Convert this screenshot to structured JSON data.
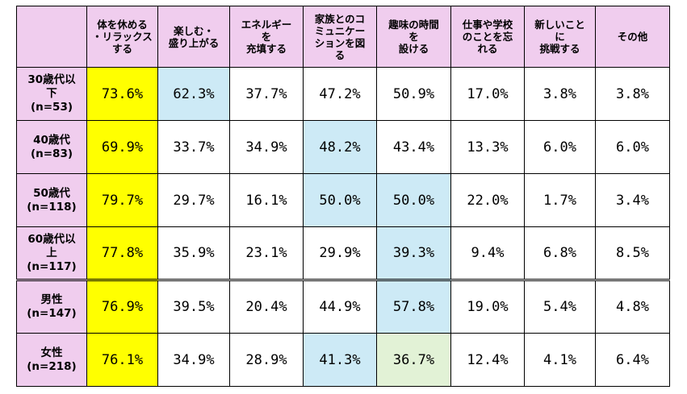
{
  "columns": [
    {
      "label": "体を休める\n・リラックス\nする"
    },
    {
      "label": "楽しむ・\n盛り上がる"
    },
    {
      "label": "エネルギー\nを\n充填する"
    },
    {
      "label": "家族とのコ\nミュニケー\nションを図\nる"
    },
    {
      "label": "趣味の時間\nを\n設ける"
    },
    {
      "label": "仕事や学校\nのことを忘\nれる"
    },
    {
      "label": "新しいこと\nに\n挑戦する"
    },
    {
      "label": "その他"
    }
  ],
  "rows": [
    {
      "label": "30歳代以\n下\n(n=53)",
      "values": [
        "73.6%",
        "62.3%",
        "37.7%",
        "47.2%",
        "50.9%",
        "17.0%",
        "3.8%",
        "3.8%"
      ],
      "highlight": [
        "yellow",
        "blue",
        "",
        "",
        "",
        "",
        "",
        ""
      ]
    },
    {
      "label": "40歳代\n(n=83)",
      "values": [
        "69.9%",
        "33.7%",
        "34.9%",
        "48.2%",
        "43.4%",
        "13.3%",
        "6.0%",
        "6.0%"
      ],
      "highlight": [
        "yellow",
        "",
        "",
        "blue",
        "",
        "",
        "",
        ""
      ]
    },
    {
      "label": "50歳代\n(n=118)",
      "values": [
        "79.7%",
        "29.7%",
        "16.1%",
        "50.0%",
        "50.0%",
        "22.0%",
        "1.7%",
        "3.4%"
      ],
      "highlight": [
        "yellow",
        "",
        "",
        "blue",
        "blue",
        "",
        "",
        ""
      ]
    },
    {
      "label": "60歳代以\n上\n(n=117)",
      "values": [
        "77.8%",
        "35.9%",
        "23.1%",
        "29.9%",
        "39.3%",
        "9.4%",
        "6.8%",
        "8.5%"
      ],
      "highlight": [
        "yellow",
        "",
        "",
        "",
        "blue",
        "",
        "",
        ""
      ]
    },
    {
      "label": "男性\n(n=147)",
      "values": [
        "76.9%",
        "39.5%",
        "20.4%",
        "44.9%",
        "57.8%",
        "19.0%",
        "5.4%",
        "4.8%"
      ],
      "highlight": [
        "yellow",
        "",
        "",
        "",
        "blue",
        "",
        "",
        ""
      ]
    },
    {
      "label": "女性\n(n=218)",
      "values": [
        "76.1%",
        "34.9%",
        "28.9%",
        "41.3%",
        "36.7%",
        "12.4%",
        "4.1%",
        "6.4%"
      ],
      "highlight": [
        "yellow",
        "",
        "",
        "blue",
        "green",
        "",
        "",
        ""
      ]
    }
  ],
  "colors": {
    "header": "#f0cdee",
    "yellow": "#ffff00",
    "blue": "#cdeaf6",
    "green": "#e2f2d6"
  }
}
